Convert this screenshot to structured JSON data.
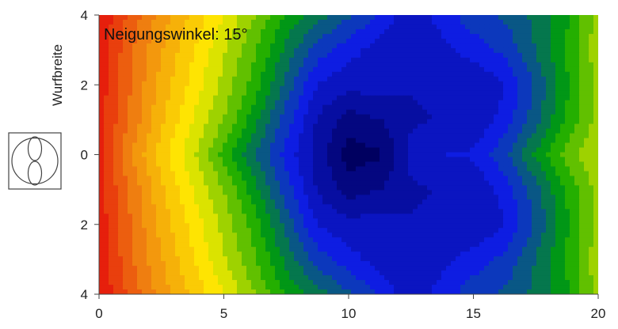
{
  "chart_data": {
    "type": "heatmap",
    "annotation": "Neigungswinkel: 15°",
    "ylabel": "Wurfbreite",
    "xlabel": "",
    "xlim": [
      0,
      20
    ],
    "ylim": [
      -4,
      4
    ],
    "x_ticks": [
      0,
      5,
      10,
      15,
      20
    ],
    "x_tick_labels": [
      "0",
      "5",
      "10",
      "15",
      "20"
    ],
    "y_ticks": [
      4,
      2,
      0,
      -2,
      -4
    ],
    "y_tick_labels": [
      "4",
      "2",
      "0",
      "2",
      "4"
    ],
    "colorscale": [
      "#e3000b",
      "#f08410",
      "#ffee00",
      "#00a400",
      "#0f1ee8",
      "#000060"
    ],
    "levels": 22,
    "x": [
      0,
      1.25,
      2.5,
      3.75,
      5,
      6.25,
      7.5,
      8.75,
      10,
      11.25,
      12.5,
      13.75,
      15,
      16.25,
      17.5,
      18.75,
      20
    ],
    "y": [
      4,
      3,
      2,
      1,
      0,
      -1,
      -2,
      -3,
      -4
    ],
    "z": [
      [
        0.05,
        0.15,
        0.25,
        0.33,
        0.41,
        0.5,
        0.6,
        0.66,
        0.72,
        0.78,
        0.85,
        0.8,
        0.74,
        0.72,
        0.67,
        0.6,
        0.48
      ],
      [
        0.06,
        0.17,
        0.27,
        0.36,
        0.45,
        0.54,
        0.65,
        0.75,
        0.8,
        0.84,
        0.86,
        0.83,
        0.8,
        0.76,
        0.68,
        0.58,
        0.47
      ],
      [
        0.06,
        0.18,
        0.29,
        0.38,
        0.47,
        0.57,
        0.7,
        0.82,
        0.85,
        0.84,
        0.86,
        0.86,
        0.86,
        0.82,
        0.72,
        0.6,
        0.48
      ],
      [
        0.07,
        0.19,
        0.31,
        0.41,
        0.5,
        0.62,
        0.75,
        0.87,
        0.93,
        0.91,
        0.87,
        0.86,
        0.86,
        0.8,
        0.7,
        0.58,
        0.48
      ],
      [
        0.08,
        0.22,
        0.34,
        0.44,
        0.56,
        0.68,
        0.79,
        0.88,
        0.98,
        0.96,
        0.85,
        0.82,
        0.81,
        0.74,
        0.63,
        0.53,
        0.45
      ],
      [
        0.07,
        0.19,
        0.31,
        0.41,
        0.5,
        0.62,
        0.75,
        0.87,
        0.93,
        0.91,
        0.87,
        0.86,
        0.86,
        0.8,
        0.7,
        0.58,
        0.48
      ],
      [
        0.06,
        0.18,
        0.29,
        0.38,
        0.47,
        0.57,
        0.7,
        0.82,
        0.85,
        0.84,
        0.86,
        0.86,
        0.86,
        0.82,
        0.72,
        0.6,
        0.48
      ],
      [
        0.06,
        0.17,
        0.27,
        0.36,
        0.45,
        0.54,
        0.65,
        0.75,
        0.8,
        0.84,
        0.86,
        0.83,
        0.8,
        0.76,
        0.68,
        0.58,
        0.47
      ],
      [
        0.05,
        0.15,
        0.25,
        0.33,
        0.41,
        0.5,
        0.6,
        0.66,
        0.72,
        0.78,
        0.85,
        0.8,
        0.74,
        0.72,
        0.67,
        0.6,
        0.48
      ]
    ]
  },
  "icons": {
    "spray_pattern": "spray-pattern-icon"
  }
}
